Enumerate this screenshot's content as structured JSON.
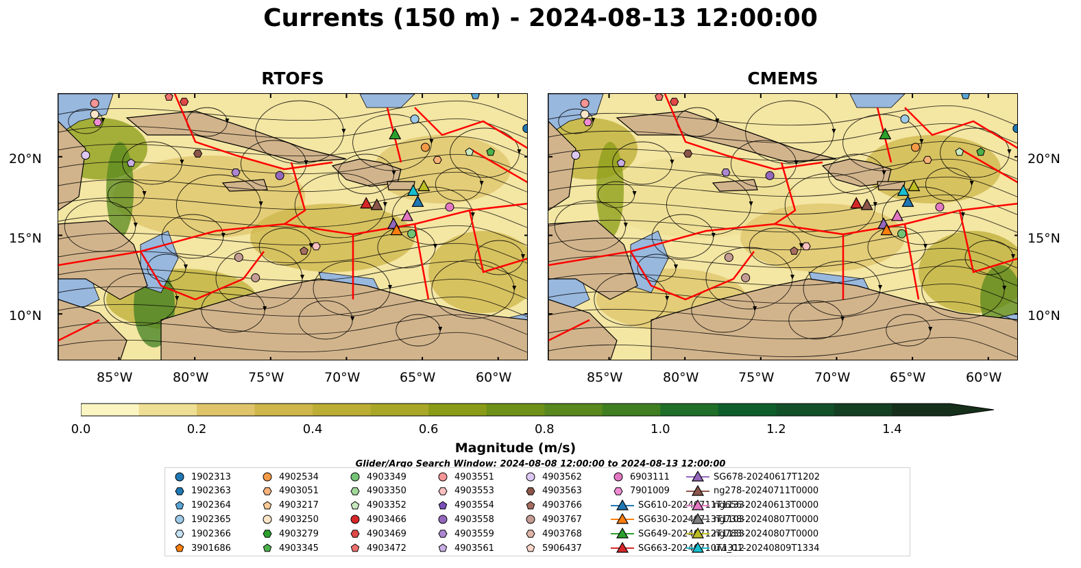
{
  "title": "Currents (150 m) - 2024-08-13 12:00:00",
  "panels": [
    {
      "title": "RTOFS"
    },
    {
      "title": "CMEMS"
    }
  ],
  "lat_labels": [
    "20°N",
    "15°N",
    "10°N"
  ],
  "lon_labels": [
    "85°W",
    "80°W",
    "75°W",
    "70°W",
    "65°W",
    "60°W"
  ],
  "map_extent": {
    "lon": [
      -89,
      -58
    ],
    "lat": [
      7,
      24
    ]
  },
  "colorbar": {
    "label": "Magnitude (m/s)",
    "ticks": [
      "0.0",
      "0.2",
      "0.4",
      "0.6",
      "0.8",
      "1.0",
      "1.2",
      "1.4"
    ],
    "range": [
      0,
      1.5
    ],
    "extend": "max",
    "colors": [
      "#fbf5c2",
      "#efdf94",
      "#dfc46a",
      "#ceb64a",
      "#bcad35",
      "#a9a728",
      "#8a9c17",
      "#6e9118",
      "#58881e",
      "#3f7f22",
      "#1f6e29",
      "#0e5f2c",
      "#12502a",
      "#153f22",
      "#152f1b"
    ]
  },
  "colors": {
    "ocean_low": "#f4e6a3",
    "land": "#d2b48c",
    "shelf_water": "#98b8de",
    "eez_line": "#ff0000",
    "streamline": "#000000"
  },
  "search_window": "Glider/Argo Search Window: 2024-08-08 12:00:00 to 2024-08-13 12:00:00",
  "legend": {
    "items": [
      {
        "label": "1902313",
        "marker": "circle",
        "color": "#1f77b4"
      },
      {
        "label": "1902363",
        "marker": "hexagon",
        "color": "#1f77b4"
      },
      {
        "label": "1902364",
        "marker": "pentagon",
        "color": "#5aa5d6"
      },
      {
        "label": "1902365",
        "marker": "circle",
        "color": "#9ecae9"
      },
      {
        "label": "1902366",
        "marker": "hexagon",
        "color": "#c6e2f5"
      },
      {
        "label": "3901686",
        "marker": "pentagon",
        "color": "#ff7f0e"
      },
      {
        "label": "4902534",
        "marker": "circle",
        "color": "#f59a46"
      },
      {
        "label": "4903051",
        "marker": "hexagon",
        "color": "#f8b27a"
      },
      {
        "label": "4903217",
        "marker": "pentagon",
        "color": "#fccb98"
      },
      {
        "label": "4903250",
        "marker": "circle",
        "color": "#fde6c8"
      },
      {
        "label": "4903279",
        "marker": "hexagon",
        "color": "#2ca02c"
      },
      {
        "label": "4903345",
        "marker": "pentagon",
        "color": "#4bb24b"
      },
      {
        "label": "4903349",
        "marker": "circle",
        "color": "#74c476"
      },
      {
        "label": "4903350",
        "marker": "hexagon",
        "color": "#a1d99b"
      },
      {
        "label": "4903352",
        "marker": "pentagon",
        "color": "#c7e9c0"
      },
      {
        "label": "4903466",
        "marker": "circle",
        "color": "#d62728"
      },
      {
        "label": "4903469",
        "marker": "hexagon",
        "color": "#e04848"
      },
      {
        "label": "4903472",
        "marker": "pentagon",
        "color": "#f07070"
      },
      {
        "label": "4903551",
        "marker": "circle",
        "color": "#f59595"
      },
      {
        "label": "4903553",
        "marker": "hexagon",
        "color": "#fbc0c0"
      },
      {
        "label": "4903554",
        "marker": "pentagon",
        "color": "#7b4fb8"
      },
      {
        "label": "4903558",
        "marker": "circle",
        "color": "#9467bd"
      },
      {
        "label": "4903559",
        "marker": "hexagon",
        "color": "#ad86d1"
      },
      {
        "label": "4903561",
        "marker": "pentagon",
        "color": "#c9aee6"
      },
      {
        "label": "4903562",
        "marker": "circle",
        "color": "#ddc8f3"
      },
      {
        "label": "4903563",
        "marker": "hexagon",
        "color": "#8c564b"
      },
      {
        "label": "4903766",
        "marker": "pentagon",
        "color": "#a56d60"
      },
      {
        "label": "4903767",
        "marker": "circle",
        "color": "#c49c94"
      },
      {
        "label": "4903768",
        "marker": "hexagon",
        "color": "#e0b5a8"
      },
      {
        "label": "5906437",
        "marker": "pentagon",
        "color": "#fbd5c8"
      },
      {
        "label": "6903111",
        "marker": "circle",
        "color": "#e377c2"
      },
      {
        "label": "7901009",
        "marker": "hexagon",
        "color": "#f08cd4"
      },
      {
        "label": "SG610-20240711T1133",
        "marker": "triangle-line",
        "color": "#1f77b4"
      },
      {
        "label": "SG630-20240713T1103",
        "marker": "triangle-line",
        "color": "#ff7f0e"
      },
      {
        "label": "SG649-20240712T1133",
        "marker": "triangle-line",
        "color": "#2ca02c"
      },
      {
        "label": "SG663-20240710T1312",
        "marker": "triangle-line",
        "color": "#d62728"
      },
      {
        "label": "SG678-20240617T1202",
        "marker": "triangle-line",
        "color": "#9467bd"
      },
      {
        "label": "ng278-20240711T0000",
        "marker": "triangle-line",
        "color": "#8c564b"
      },
      {
        "label": "ng656-20240613T0000",
        "marker": "triangle-line",
        "color": "#e377c2"
      },
      {
        "label": "ng738-20240807T0000",
        "marker": "triangle-line",
        "color": "#7f7f7f"
      },
      {
        "label": "ng783-20240807T0000",
        "marker": "triangle-line",
        "color": "#bcbd22"
      },
      {
        "label": "uvi_01-20240809T1334",
        "marker": "triangle-line",
        "color": "#17becf"
      }
    ]
  },
  "platforms": [
    {
      "id": "1902313",
      "lon": -58.1,
      "lat": 21.8
    },
    {
      "id": "1902365",
      "lon": -65.5,
      "lat": 22.4
    },
    {
      "id": "1902364",
      "lon": -61.5,
      "lat": 23.9
    },
    {
      "id": "4902534",
      "lon": -64.8,
      "lat": 20.6
    },
    {
      "id": "4903051",
      "lon": -64.0,
      "lat": 19.8
    },
    {
      "id": "4903352",
      "lon": -61.9,
      "lat": 20.3
    },
    {
      "id": "4903345",
      "lon": -60.5,
      "lat": 20.3
    },
    {
      "id": "6903111",
      "lon": -63.2,
      "lat": 16.8
    },
    {
      "id": "4903349",
      "lon": -65.7,
      "lat": 15.1
    },
    {
      "id": "4903558",
      "lon": -74.4,
      "lat": 18.8
    },
    {
      "id": "4903559",
      "lon": -77.3,
      "lat": 19.0
    },
    {
      "id": "4903561",
      "lon": -84.2,
      "lat": 19.6
    },
    {
      "id": "4903563",
      "lon": -79.8,
      "lat": 20.2
    },
    {
      "id": "4903562",
      "lon": -87.2,
      "lat": 20.1
    },
    {
      "id": "4903767",
      "lon": -77.1,
      "lat": 13.6
    },
    {
      "id": "4903767",
      "lon": -76.0,
      "lat": 12.3
    },
    {
      "id": "4903766",
      "lon": -72.8,
      "lat": 14.0
    },
    {
      "id": "4903553",
      "lon": -72.0,
      "lat": 14.3
    },
    {
      "id": "4903250",
      "lon": -86.6,
      "lat": 22.7
    },
    {
      "id": "4903551",
      "lon": -86.6,
      "lat": 23.4
    },
    {
      "id": "4903472",
      "lon": -81.7,
      "lat": 23.8
    },
    {
      "id": "4903469",
      "lon": -80.7,
      "lat": 23.5
    },
    {
      "id": "7901009",
      "lon": -86.4,
      "lat": 22.2
    }
  ],
  "gliders": [
    {
      "id": "SG649-20240712T1133",
      "lon": -66.8,
      "lat": 21.4
    },
    {
      "id": "SG663-20240710T1312",
      "lon": -68.7,
      "lat": 17.0
    },
    {
      "id": "ng278-20240711T0000",
      "lon": -68.0,
      "lat": 16.9
    },
    {
      "id": "SG678-20240617T1202",
      "lon": -66.9,
      "lat": 15.7
    },
    {
      "id": "SG630-20240713T1103",
      "lon": -66.7,
      "lat": 15.3
    },
    {
      "id": "ng656-20240613T0000",
      "lon": -66.0,
      "lat": 16.2
    },
    {
      "id": "uvi_01-20240809T1334",
      "lon": -65.6,
      "lat": 17.8
    },
    {
      "id": "SG610-20240711T1133",
      "lon": -65.3,
      "lat": 17.1
    },
    {
      "id": "ng783-20240807T0000",
      "lon": -64.9,
      "lat": 18.1
    }
  ]
}
